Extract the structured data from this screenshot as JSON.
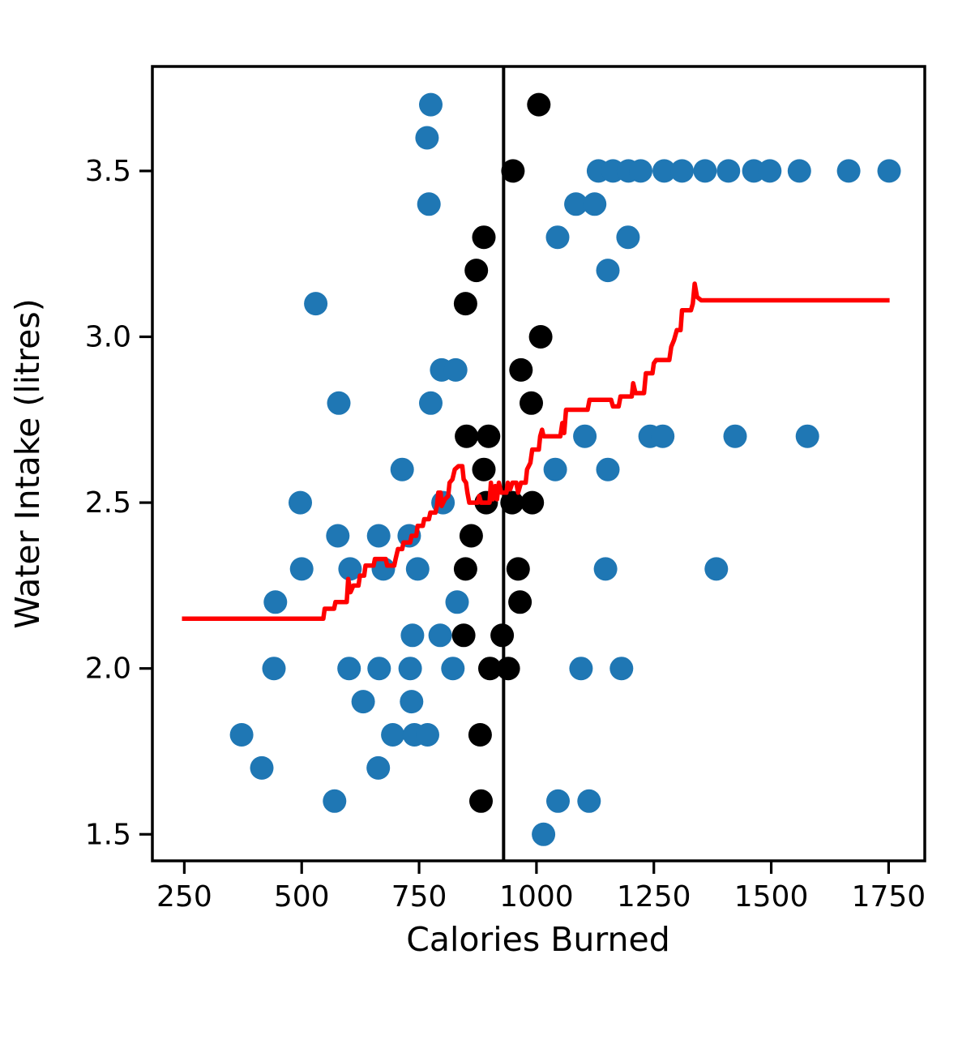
{
  "figure": {
    "background_color": "#ffffff"
  },
  "chart_data": {
    "type": "scatter",
    "title": "",
    "xlabel": "Calories Burned",
    "ylabel": "Water Intake (litres)",
    "xlim": [
      182,
      1827
    ],
    "ylim": [
      1.42,
      3.815
    ],
    "x_ticks": [
      250,
      500,
      750,
      1000,
      1250,
      1500,
      1750
    ],
    "x_tick_labels": [
      "250",
      "500",
      "750",
      "1000",
      "1250",
      "1500",
      "1750"
    ],
    "y_ticks": [
      1.5,
      2.0,
      2.5,
      3.0,
      3.5
    ],
    "y_tick_labels": [
      "1.5",
      "2.0",
      "2.5",
      "3.0",
      "3.5"
    ],
    "grid": false,
    "legend": null,
    "marker_radius": 14.5,
    "colors": {
      "blue_series": "#1f77b4",
      "black_series": "#000000",
      "step_line": "#ff0000",
      "vline": "#000000",
      "spine": "#000000"
    },
    "vline_x": 930,
    "series": [
      {
        "name": "blue-points",
        "color_key": "blue_series",
        "points": [
          [
            775,
            3.7
          ],
          [
            767,
            3.6
          ],
          [
            1132,
            3.5
          ],
          [
            1163,
            3.5
          ],
          [
            1196,
            3.5
          ],
          [
            1222,
            3.5
          ],
          [
            1272,
            3.5
          ],
          [
            1310,
            3.5
          ],
          [
            1359,
            3.5
          ],
          [
            1409,
            3.5
          ],
          [
            1463,
            3.5
          ],
          [
            1497,
            3.5
          ],
          [
            1560,
            3.5
          ],
          [
            1665,
            3.5
          ],
          [
            1751,
            3.5
          ],
          [
            771,
            3.4
          ],
          [
            1084,
            3.4
          ],
          [
            1124,
            3.4
          ],
          [
            1045,
            3.3
          ],
          [
            1195,
            3.3
          ],
          [
            1152,
            3.2
          ],
          [
            530,
            3.1
          ],
          [
            798,
            2.9
          ],
          [
            828,
            2.9
          ],
          [
            579,
            2.8
          ],
          [
            775,
            2.8
          ],
          [
            1103,
            2.7
          ],
          [
            1242,
            2.7
          ],
          [
            1269,
            2.7
          ],
          [
            1423,
            2.7
          ],
          [
            1577,
            2.7
          ],
          [
            714,
            2.6
          ],
          [
            1040,
            2.6
          ],
          [
            1152,
            2.6
          ],
          [
            497,
            2.5
          ],
          [
            801,
            2.5
          ],
          [
            577,
            2.4
          ],
          [
            664,
            2.4
          ],
          [
            729,
            2.4
          ],
          [
            500,
            2.3
          ],
          [
            603,
            2.3
          ],
          [
            674,
            2.3
          ],
          [
            747,
            2.3
          ],
          [
            1147,
            2.3
          ],
          [
            1383,
            2.3
          ],
          [
            444,
            2.2
          ],
          [
            831,
            2.2
          ],
          [
            736,
            2.1
          ],
          [
            795,
            2.1
          ],
          [
            441,
            2.0
          ],
          [
            601,
            2.0
          ],
          [
            665,
            2.0
          ],
          [
            731,
            2.0
          ],
          [
            822,
            2.0
          ],
          [
            1095,
            2.0
          ],
          [
            1181,
            2.0
          ],
          [
            631,
            1.9
          ],
          [
            734,
            1.9
          ],
          [
            372,
            1.8
          ],
          [
            694,
            1.8
          ],
          [
            740,
            1.8
          ],
          [
            768,
            1.8
          ],
          [
            415,
            1.7
          ],
          [
            663,
            1.7
          ],
          [
            570,
            1.6
          ],
          [
            1046,
            1.6
          ],
          [
            1112,
            1.6
          ],
          [
            1015,
            1.5
          ]
        ]
      },
      {
        "name": "black-points",
        "color_key": "black_series",
        "points": [
          [
            1005,
            3.7
          ],
          [
            950,
            3.5
          ],
          [
            888,
            3.3
          ],
          [
            872,
            3.2
          ],
          [
            849,
            3.1
          ],
          [
            1009,
            3.0
          ],
          [
            967,
            2.9
          ],
          [
            989,
            2.8
          ],
          [
            851,
            2.7
          ],
          [
            898,
            2.7
          ],
          [
            888,
            2.6
          ],
          [
            893,
            2.5
          ],
          [
            948,
            2.5
          ],
          [
            991,
            2.5
          ],
          [
            861,
            2.4
          ],
          [
            849,
            2.3
          ],
          [
            961,
            2.3
          ],
          [
            965,
            2.2
          ],
          [
            845,
            2.1
          ],
          [
            927,
            2.1
          ],
          [
            901,
            2.0
          ],
          [
            940,
            2.0
          ],
          [
            880,
            1.8
          ],
          [
            882,
            1.6
          ]
        ]
      }
    ],
    "step_line": {
      "name": "red-step-line",
      "color_key": "step_line",
      "points": [
        [
          245,
          2.15
        ],
        [
          546,
          2.15
        ],
        [
          549,
          2.18
        ],
        [
          569,
          2.18
        ],
        [
          572,
          2.2
        ],
        [
          596,
          2.2
        ],
        [
          599,
          2.27
        ],
        [
          604,
          2.23
        ],
        [
          610,
          2.25
        ],
        [
          621,
          2.25
        ],
        [
          624,
          2.28
        ],
        [
          633,
          2.28
        ],
        [
          636,
          2.31
        ],
        [
          653,
          2.31
        ],
        [
          656,
          2.33
        ],
        [
          679,
          2.33
        ],
        [
          682,
          2.31
        ],
        [
          697,
          2.31
        ],
        [
          700,
          2.33
        ],
        [
          705,
          2.36
        ],
        [
          714,
          2.36
        ],
        [
          717,
          2.38
        ],
        [
          731,
          2.38
        ],
        [
          734,
          2.4
        ],
        [
          744,
          2.4
        ],
        [
          747,
          2.43
        ],
        [
          758,
          2.43
        ],
        [
          761,
          2.45
        ],
        [
          771,
          2.45
        ],
        [
          774,
          2.47
        ],
        [
          785,
          2.47
        ],
        [
          788,
          2.49
        ],
        [
          791,
          2.53
        ],
        [
          796,
          2.53
        ],
        [
          798,
          2.49
        ],
        [
          805,
          2.51
        ],
        [
          812,
          2.52
        ],
        [
          815,
          2.56
        ],
        [
          821,
          2.57
        ],
        [
          826,
          2.6
        ],
        [
          834,
          2.61
        ],
        [
          842,
          2.61
        ],
        [
          845,
          2.57
        ],
        [
          850,
          2.56
        ],
        [
          853,
          2.53
        ],
        [
          857,
          2.5
        ],
        [
          875,
          2.5
        ],
        [
          878,
          2.52
        ],
        [
          882,
          2.5
        ],
        [
          900,
          2.5
        ],
        [
          903,
          2.56
        ],
        [
          907,
          2.51
        ],
        [
          912,
          2.55
        ],
        [
          916,
          2.51
        ],
        [
          920,
          2.56
        ],
        [
          925,
          2.53
        ],
        [
          936,
          2.53
        ],
        [
          939,
          2.56
        ],
        [
          944,
          2.54
        ],
        [
          949,
          2.56
        ],
        [
          957,
          2.56
        ],
        [
          961,
          2.53
        ],
        [
          967,
          2.56
        ],
        [
          977,
          2.56
        ],
        [
          980,
          2.6
        ],
        [
          987,
          2.62
        ],
        [
          991,
          2.66
        ],
        [
          1005,
          2.66
        ],
        [
          1008,
          2.7
        ],
        [
          1012,
          2.72
        ],
        [
          1015,
          2.7
        ],
        [
          1051,
          2.7
        ],
        [
          1055,
          2.74
        ],
        [
          1059,
          2.71
        ],
        [
          1063,
          2.78
        ],
        [
          1109,
          2.78
        ],
        [
          1113,
          2.81
        ],
        [
          1159,
          2.81
        ],
        [
          1163,
          2.79
        ],
        [
          1175,
          2.79
        ],
        [
          1179,
          2.82
        ],
        [
          1203,
          2.82
        ],
        [
          1206,
          2.86
        ],
        [
          1211,
          2.83
        ],
        [
          1229,
          2.83
        ],
        [
          1233,
          2.89
        ],
        [
          1247,
          2.89
        ],
        [
          1250,
          2.92
        ],
        [
          1255,
          2.93
        ],
        [
          1283,
          2.93
        ],
        [
          1287,
          2.97
        ],
        [
          1293,
          2.99
        ],
        [
          1299,
          3.02
        ],
        [
          1307,
          3.02
        ],
        [
          1310,
          3.08
        ],
        [
          1329,
          3.08
        ],
        [
          1333,
          3.1
        ],
        [
          1337,
          3.16
        ],
        [
          1342,
          3.12
        ],
        [
          1351,
          3.11
        ],
        [
          1752,
          3.11
        ]
      ]
    }
  }
}
